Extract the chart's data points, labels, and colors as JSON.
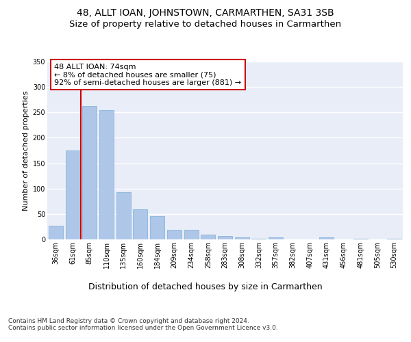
{
  "title": "48, ALLT IOAN, JOHNSTOWN, CARMARTHEN, SA31 3SB",
  "subtitle": "Size of property relative to detached houses in Carmarthen",
  "xlabel": "Distribution of detached houses by size in Carmarthen",
  "ylabel": "Number of detached properties",
  "categories": [
    "36sqm",
    "61sqm",
    "85sqm",
    "110sqm",
    "135sqm",
    "160sqm",
    "184sqm",
    "209sqm",
    "234sqm",
    "258sqm",
    "283sqm",
    "308sqm",
    "332sqm",
    "357sqm",
    "382sqm",
    "407sqm",
    "431sqm",
    "456sqm",
    "481sqm",
    "505sqm",
    "530sqm"
  ],
  "values": [
    27,
    175,
    262,
    255,
    93,
    59,
    46,
    19,
    19,
    9,
    7,
    4,
    1,
    4,
    0,
    0,
    4,
    0,
    1,
    0,
    2
  ],
  "bar_color": "#aec6e8",
  "bar_edge_color": "#7aadd4",
  "vline_x": 1.5,
  "vline_color": "#cc0000",
  "annotation_text": "48 ALLT IOAN: 74sqm\n← 8% of detached houses are smaller (75)\n92% of semi-detached houses are larger (881) →",
  "annotation_box_color": "#ffffff",
  "annotation_box_edge_color": "#cc0000",
  "ylim": [
    0,
    350
  ],
  "yticks": [
    0,
    50,
    100,
    150,
    200,
    250,
    300,
    350
  ],
  "background_color": "#e8edf8",
  "grid_color": "#ffffff",
  "footer_text": "Contains HM Land Registry data © Crown copyright and database right 2024.\nContains public sector information licensed under the Open Government Licence v3.0.",
  "title_fontsize": 10,
  "subtitle_fontsize": 9.5,
  "xlabel_fontsize": 9,
  "ylabel_fontsize": 8,
  "tick_fontsize": 7,
  "annotation_fontsize": 8,
  "footer_fontsize": 6.5
}
